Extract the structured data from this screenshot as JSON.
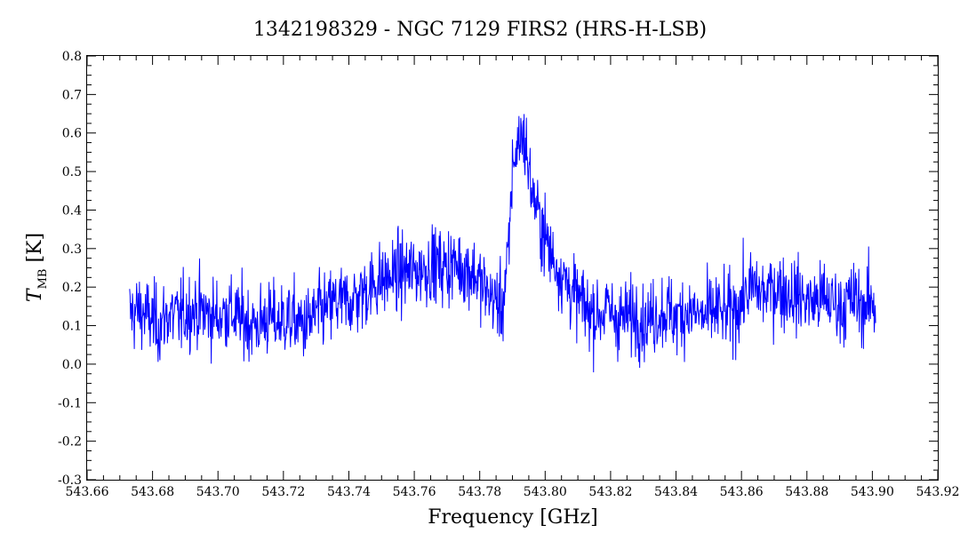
{
  "chart_data": {
    "type": "line",
    "title": "1342198329 - NGC 7129 FIRS2 (HRS-H-LSB)",
    "xlabel": "Frequency [GHz]",
    "ylabel_main": "T",
    "ylabel_sub": "MB",
    "ylabel_unit": "[K]",
    "xlim": [
      543.66,
      543.92
    ],
    "ylim": [
      -0.3,
      0.8
    ],
    "x_ticks": [
      "543.66",
      "543.68",
      "543.70",
      "543.72",
      "543.74",
      "543.76",
      "543.78",
      "543.80",
      "543.82",
      "543.84",
      "543.86",
      "543.88",
      "543.90",
      "543.92"
    ],
    "y_ticks": [
      "-0.3",
      "-0.2",
      "-0.1",
      "0.0",
      "0.1",
      "0.2",
      "0.3",
      "0.4",
      "0.5",
      "0.6",
      "0.7",
      "0.8"
    ],
    "line_color": "#0000ff",
    "grid": false,
    "series": [
      {
        "x_start": 543.673,
        "x_end": 543.901,
        "x": [
          543.673,
          543.676,
          543.679,
          543.682,
          543.685,
          543.688,
          543.691,
          543.694,
          543.697,
          543.7,
          543.703,
          543.706,
          543.709,
          543.712,
          543.715,
          543.718,
          543.721,
          543.724,
          543.727,
          543.73,
          543.733,
          543.736,
          543.739,
          543.742,
          543.745,
          543.748,
          543.751,
          543.754,
          543.757,
          543.76,
          543.763,
          543.766,
          543.769,
          543.772,
          543.775,
          543.778,
          543.781,
          543.784,
          543.787,
          543.789,
          543.79,
          543.791,
          543.792,
          543.793,
          543.794,
          543.795,
          543.796,
          543.797,
          543.798,
          543.8,
          543.802,
          543.804,
          543.806,
          543.808,
          543.81,
          543.813,
          543.816,
          543.819,
          543.822,
          543.825,
          543.828,
          543.831,
          543.834,
          543.837,
          543.84,
          543.843,
          543.846,
          543.849,
          543.852,
          543.855,
          543.858,
          543.861,
          543.864,
          543.867,
          543.87,
          543.873,
          543.876,
          543.879,
          543.882,
          543.885,
          543.888,
          543.891,
          543.894,
          543.897,
          543.9,
          543.901
        ],
        "y": [
          0.13,
          0.14,
          0.12,
          0.1,
          0.13,
          0.12,
          0.14,
          0.14,
          0.13,
          0.12,
          0.14,
          0.12,
          0.11,
          0.1,
          0.12,
          0.11,
          0.12,
          0.11,
          0.1,
          0.13,
          0.14,
          0.16,
          0.16,
          0.17,
          0.19,
          0.21,
          0.22,
          0.23,
          0.24,
          0.24,
          0.25,
          0.26,
          0.25,
          0.26,
          0.25,
          0.24,
          0.2,
          0.17,
          0.15,
          0.3,
          0.52,
          0.55,
          0.58,
          0.6,
          0.57,
          0.5,
          0.45,
          0.42,
          0.38,
          0.33,
          0.28,
          0.25,
          0.22,
          0.19,
          0.17,
          0.14,
          0.13,
          0.14,
          0.12,
          0.12,
          0.13,
          0.11,
          0.13,
          0.14,
          0.12,
          0.14,
          0.13,
          0.12,
          0.14,
          0.13,
          0.14,
          0.18,
          0.2,
          0.18,
          0.2,
          0.19,
          0.18,
          0.17,
          0.16,
          0.17,
          0.16,
          0.15,
          0.17,
          0.15,
          0.16,
          0.15
        ],
        "noise_rms": 0.07
      }
    ]
  }
}
